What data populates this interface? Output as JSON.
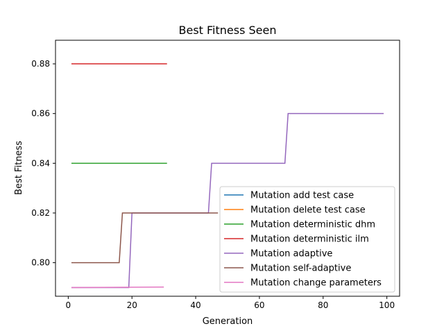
{
  "chart_data": {
    "type": "line",
    "title": "Best Fitness Seen",
    "xlabel": "Generation",
    "ylabel": "Best Fitness",
    "xlim": [
      -4,
      104
    ],
    "ylim": [
      0.7865,
      0.8895
    ],
    "xticks": [
      0,
      20,
      40,
      60,
      80,
      100
    ],
    "yticks": [
      0.8,
      0.82,
      0.84,
      0.86,
      0.88
    ],
    "xtick_labels": [
      "0",
      "20",
      "40",
      "60",
      "80",
      "100"
    ],
    "ytick_labels": [
      "0.80",
      "0.82",
      "0.84",
      "0.86",
      "0.88"
    ],
    "grid": false,
    "legend_position": "lower-right",
    "series": [
      {
        "name": "Mutation add test case",
        "color": "#1f77b4",
        "x": [],
        "y": []
      },
      {
        "name": "Mutation delete test case",
        "color": "#ff7f0e",
        "x": [],
        "y": []
      },
      {
        "name": "Mutation deterministic dhm",
        "color": "#2ca02c",
        "x": [
          1,
          31
        ],
        "y": [
          0.84,
          0.84
        ]
      },
      {
        "name": "Mutation deterministic ilm",
        "color": "#d62728",
        "x": [
          1,
          31
        ],
        "y": [
          0.88,
          0.88
        ]
      },
      {
        "name": "Mutation adaptive",
        "color": "#9467bd",
        "x": [
          1,
          19,
          20,
          44,
          45,
          68,
          69,
          99
        ],
        "y": [
          0.79,
          0.79,
          0.82,
          0.82,
          0.84,
          0.84,
          0.86,
          0.86
        ]
      },
      {
        "name": "Mutation self-adaptive",
        "color": "#8c564b",
        "x": [
          1,
          16,
          17,
          47
        ],
        "y": [
          0.8,
          0.8,
          0.82,
          0.82
        ]
      },
      {
        "name": "Mutation change parameters",
        "color": "#e377c2",
        "x": [
          1,
          30
        ],
        "y": [
          0.79,
          0.7902
        ]
      }
    ]
  }
}
